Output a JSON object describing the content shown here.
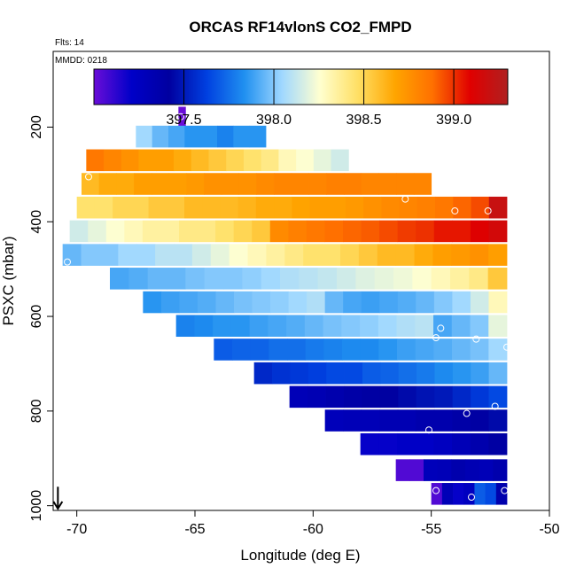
{
  "chart_data": {
    "type": "heatmap",
    "title": "ORCAS RF14vlonS CO2_FMPD",
    "flights_label": "Flts: 14",
    "date_label": "MMDD: 0218",
    "xlabel": "Longitude (deg E)",
    "ylabel": "PSXC (mbar)",
    "xlim": [
      -71,
      -50
    ],
    "ylim": [
      1010,
      40
    ],
    "x_ticks": [
      -70,
      -65,
      -60,
      -55,
      -50
    ],
    "y_ticks": [
      200,
      400,
      600,
      800,
      1000
    ],
    "colorbar": {
      "range": [
        397.0,
        399.3
      ],
      "ticks": [
        397.5,
        398.0,
        398.5,
        399.0
      ],
      "colors": [
        "#6a0dd8",
        "#0000c8",
        "#0000a0",
        "#0040e0",
        "#2090f0",
        "#a0d8ff",
        "#ffffd0",
        "#ffe066",
        "#ffa500",
        "#ff7000",
        "#e00000",
        "#b02020"
      ]
    },
    "rows": [
      {
        "p": 180,
        "x0": -65.7,
        "x1": -65.4,
        "vals": [
          397.0
        ]
      },
      {
        "p": 220,
        "x0": -67.5,
        "x1": -62.0,
        "vals": [
          398.05,
          397.95,
          397.9,
          397.85,
          397.85,
          397.8,
          397.85,
          397.85
        ]
      },
      {
        "p": 270,
        "x0": -69.6,
        "x1": -58.5,
        "vals": [
          398.85,
          398.8,
          398.75,
          398.7,
          398.7,
          398.65,
          398.6,
          398.55,
          398.5,
          398.45,
          398.4,
          398.3,
          398.25,
          398.2,
          398.15
        ]
      },
      {
        "p": 320,
        "x0": -69.8,
        "x1": -55.0,
        "vals": [
          398.6,
          398.65,
          398.65,
          398.7,
          398.7,
          398.7,
          398.72,
          398.75,
          398.75,
          398.75,
          398.78,
          398.8,
          398.8,
          398.8,
          398.82,
          398.82,
          398.8,
          398.8,
          398.8,
          398.8
        ]
      },
      {
        "p": 370,
        "x0": -70.0,
        "x1": -51.8,
        "vals": [
          398.45,
          398.45,
          398.5,
          398.5,
          398.55,
          398.55,
          398.6,
          398.6,
          398.6,
          398.62,
          398.65,
          398.65,
          398.68,
          398.7,
          398.7,
          398.72,
          398.75,
          398.78,
          398.8,
          398.82,
          398.85,
          398.9,
          398.95,
          399.2
        ]
      },
      {
        "p": 420,
        "x0": -70.3,
        "x1": -51.8,
        "vals": [
          398.15,
          398.2,
          398.25,
          398.3,
          398.35,
          398.35,
          398.4,
          398.4,
          398.45,
          398.5,
          398.55,
          398.78,
          398.82,
          398.85,
          398.88,
          398.9,
          398.92,
          398.95,
          398.98,
          399.0,
          399.05,
          399.05,
          399.1,
          399.15
        ]
      },
      {
        "p": 470,
        "x0": -70.6,
        "x1": -51.8,
        "vals": [
          397.95,
          398.0,
          398.0,
          398.05,
          398.05,
          398.1,
          398.1,
          398.15,
          398.2,
          398.25,
          398.3,
          398.35,
          398.4,
          398.45,
          398.45,
          398.5,
          398.55,
          398.6,
          398.6,
          398.65,
          398.7,
          398.72,
          398.75,
          398.7
        ]
      },
      {
        "p": 520,
        "x0": -68.6,
        "x1": -51.8,
        "vals": [
          397.9,
          397.92,
          397.95,
          397.95,
          397.98,
          398.0,
          398.0,
          398.02,
          398.05,
          398.08,
          398.1,
          398.12,
          398.15,
          398.18,
          398.2,
          398.22,
          398.25,
          398.3,
          398.35,
          398.4,
          398.55
        ]
      },
      {
        "p": 570,
        "x0": -67.2,
        "x1": -51.8,
        "vals": [
          397.85,
          397.88,
          397.9,
          397.92,
          397.95,
          397.98,
          398.0,
          398.02,
          398.05,
          398.08,
          397.95,
          397.9,
          397.88,
          397.9,
          397.92,
          397.95,
          398.0,
          398.05,
          398.15,
          398.3
        ]
      },
      {
        "p": 620,
        "x0": -65.8,
        "x1": -51.8,
        "vals": [
          397.8,
          397.82,
          397.85,
          397.85,
          397.88,
          397.9,
          397.92,
          397.95,
          397.98,
          398.0,
          398.02,
          398.05,
          398.08,
          398.1,
          397.9,
          397.95,
          398.0,
          398.2
        ]
      },
      {
        "p": 670,
        "x0": -64.2,
        "x1": -51.8,
        "vals": [
          397.7,
          397.72,
          397.72,
          397.75,
          397.75,
          397.78,
          397.8,
          397.82,
          397.82,
          397.85,
          397.88,
          397.9,
          397.92,
          397.95,
          397.98,
          398.05
        ]
      },
      {
        "p": 720,
        "x0": -62.5,
        "x1": -51.8,
        "vals": [
          397.55,
          397.58,
          397.6,
          397.62,
          397.65,
          397.65,
          397.7,
          397.72,
          397.75,
          397.78,
          397.82,
          397.85,
          397.88,
          397.95
        ]
      },
      {
        "p": 770,
        "x0": -61.0,
        "x1": -51.8,
        "vals": [
          397.3,
          397.32,
          397.35,
          397.38,
          397.4,
          397.42,
          397.45,
          397.48,
          397.5,
          397.55,
          397.6,
          397.65
        ]
      },
      {
        "p": 820,
        "x0": -59.5,
        "x1": -51.8,
        "vals": [
          397.28,
          397.3,
          397.3,
          397.32,
          397.32,
          397.35,
          397.35,
          397.38,
          397.4,
          397.45
        ]
      },
      {
        "p": 870,
        "x0": -58.0,
        "x1": -51.8,
        "vals": [
          397.2,
          397.2,
          397.22,
          397.22,
          397.25,
          397.3,
          397.35,
          397.4
        ]
      },
      {
        "p": 925,
        "x0": -56.5,
        "x1": -51.8,
        "vals": [
          397.05,
          397.05,
          397.28,
          397.3,
          397.35,
          397.32,
          397.3,
          397.35
        ]
      },
      {
        "p": 975,
        "x0": -55.0,
        "x1": -51.8,
        "vals": [
          397.05,
          397.3,
          397.2,
          397.25,
          397.7,
          397.65,
          397.35
        ]
      }
    ],
    "points": [
      {
        "x": -65.6,
        "p": 178
      },
      {
        "x": -69.5,
        "p": 305
      },
      {
        "x": -56.1,
        "p": 352
      },
      {
        "x": -54.0,
        "p": 377
      },
      {
        "x": -52.6,
        "p": 377
      },
      {
        "x": -51.5,
        "p": 377
      },
      {
        "x": -70.4,
        "p": 485
      },
      {
        "x": -54.6,
        "p": 625
      },
      {
        "x": -54.8,
        "p": 645
      },
      {
        "x": -53.1,
        "p": 648
      },
      {
        "x": -51.8,
        "p": 665
      },
      {
        "x": -53.5,
        "p": 805
      },
      {
        "x": -52.3,
        "p": 790
      },
      {
        "x": -55.1,
        "p": 840
      },
      {
        "x": -54.8,
        "p": 968
      },
      {
        "x": -53.3,
        "p": 982
      },
      {
        "x": -51.9,
        "p": 968
      }
    ],
    "arrow": {
      "x": -70.8,
      "p_from": 960,
      "p_to": 1010
    }
  }
}
